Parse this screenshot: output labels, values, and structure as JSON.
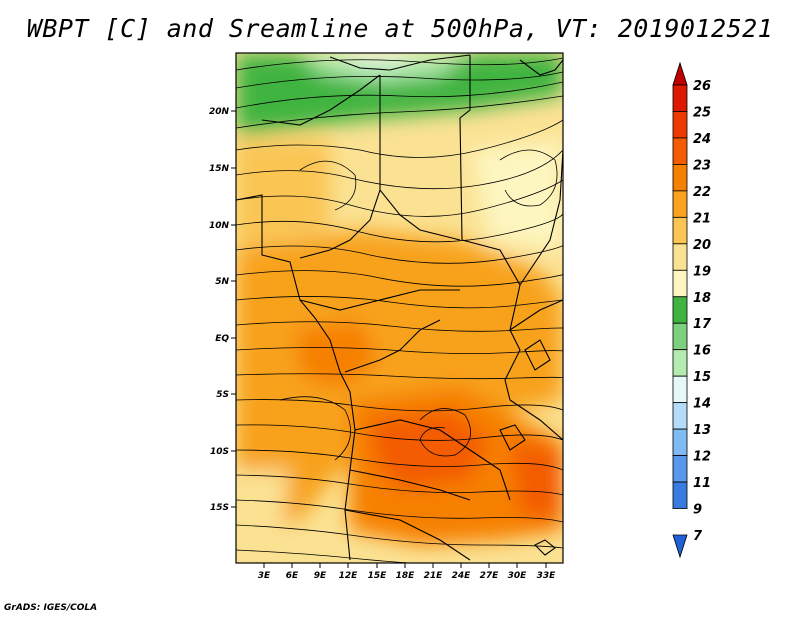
{
  "title": "WBPT [C] and Sreamline at 500hPa, VT: 2019012521",
  "credit": "GrADS: IGES/COLA",
  "map": {
    "lat_ticks": [
      "20N",
      "15N",
      "10N",
      "5N",
      "EQ",
      "5S",
      "10S",
      "15S"
    ],
    "lon_ticks": [
      "3E",
      "6E",
      "9E",
      "12E",
      "15E",
      "18E",
      "21E",
      "24E",
      "27E",
      "30E",
      "33E"
    ]
  },
  "colorbar": {
    "labels": [
      "26",
      "25",
      "24",
      "23",
      "22",
      "21",
      "20",
      "19",
      "18",
      "17",
      "16",
      "15",
      "14",
      "13",
      "12",
      "11",
      "9",
      "7"
    ],
    "colors": [
      "#c00000",
      "#dd1a00",
      "#ee3a00",
      "#f35c00",
      "#f68000",
      "#f8a21e",
      "#fac552",
      "#fbe293",
      "#fdf6c0",
      "#40b440",
      "#7dd07d",
      "#b4ecb0",
      "#e6f8f8",
      "#b4dcfa",
      "#80baf2",
      "#5898ea",
      "#3a7be0",
      "#2060d8"
    ]
  }
}
